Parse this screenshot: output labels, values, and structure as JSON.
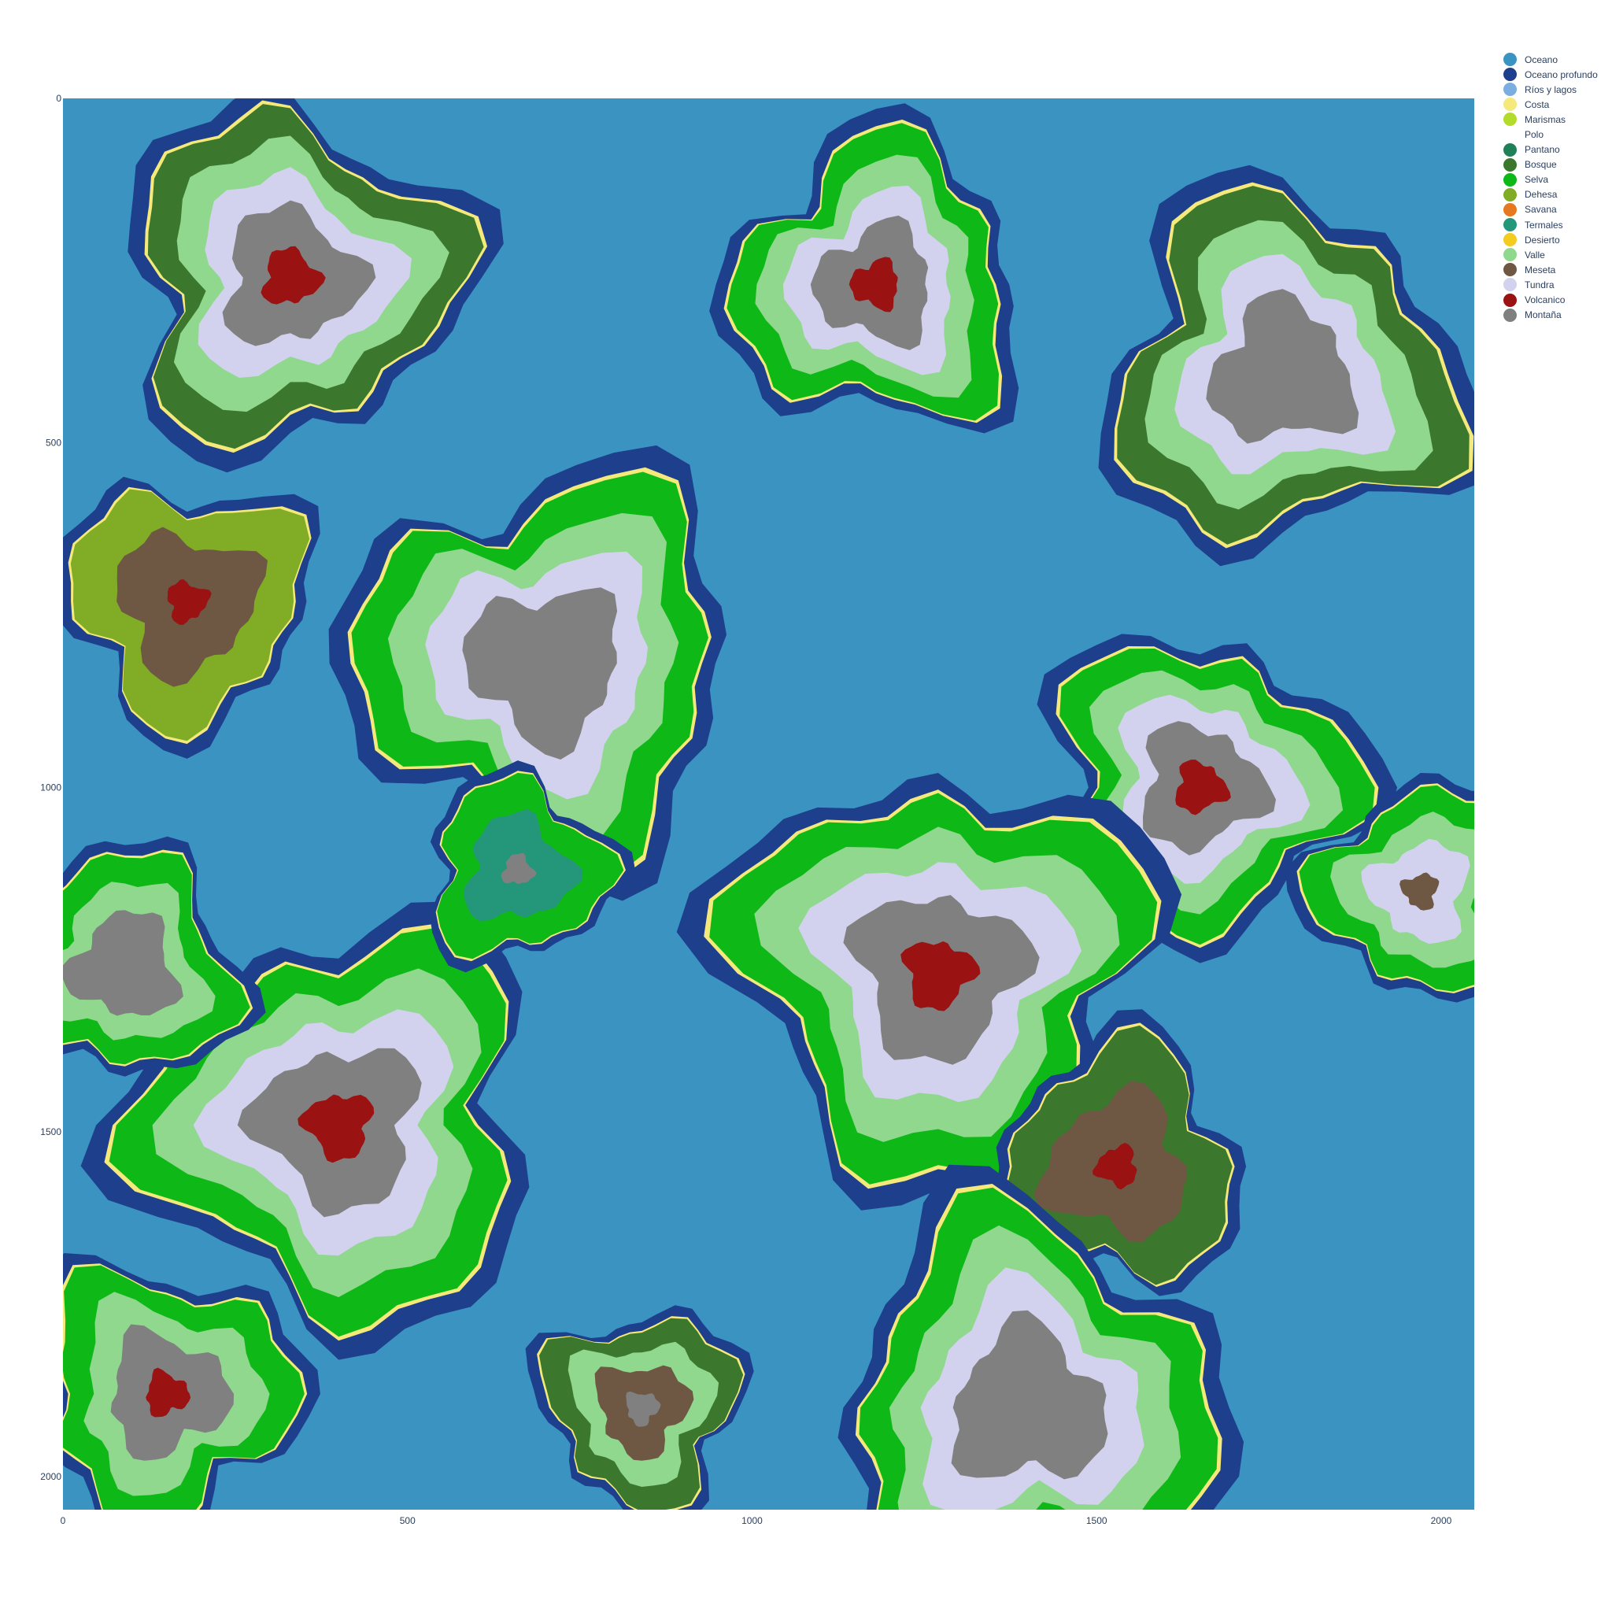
{
  "chart_data": {
    "type": "heatmap",
    "title": "",
    "xlabel": "",
    "ylabel": "",
    "xlim": [
      0,
      2048
    ],
    "ylim": [
      0,
      2048
    ],
    "y_axis_direction": "reversed",
    "x_ticks": [
      "0",
      "500",
      "1000",
      "1500",
      "2000"
    ],
    "y_ticks": [
      "0",
      "500",
      "1000",
      "1500",
      "2000"
    ],
    "grid": false,
    "legend_position": "top-right",
    "categories": [
      {
        "name": "Oceano",
        "color": "#3b93c2"
      },
      {
        "name": "Oceano profundo",
        "color": "#1d3f8c"
      },
      {
        "name": "Ríos y lagos",
        "color": "#7aaee0"
      },
      {
        "name": "Costa",
        "color": "#f4e97a"
      },
      {
        "name": "Marismas",
        "color": "#b2db2c"
      },
      {
        "name": "Polo",
        "color": "#ffffff"
      },
      {
        "name": "Pantano",
        "color": "#1f8158"
      },
      {
        "name": "Bosque",
        "color": "#3b772c"
      },
      {
        "name": "Selva",
        "color": "#0eb816"
      },
      {
        "name": "Dehesa",
        "color": "#80ad25"
      },
      {
        "name": "Savana",
        "color": "#e6781f"
      },
      {
        "name": "Termales",
        "color": "#24977a"
      },
      {
        "name": "Desierto",
        "color": "#f4cb1f"
      },
      {
        "name": "Valle",
        "color": "#8fd88e"
      },
      {
        "name": "Meseta",
        "color": "#6f5843"
      },
      {
        "name": "Tundra",
        "color": "#d2d2ee"
      },
      {
        "name": "Volcanico",
        "color": "#9b1212"
      },
      {
        "name": "Montaña",
        "color": "#808080"
      }
    ],
    "landmasses": [
      {
        "cx": 330,
        "cy": 260,
        "r": 220,
        "rings": [
          "Bosque",
          "Valle",
          "Tundra",
          "Montaña"
        ],
        "core": "Volcanico"
      },
      {
        "cx": 180,
        "cy": 730,
        "r": 160,
        "rings": [
          "Dehesa",
          "Meseta"
        ],
        "core": "Volcanico"
      },
      {
        "cx": 700,
        "cy": 820,
        "r": 250,
        "rings": [
          "Selva",
          "Valle",
          "Tundra",
          "Montaña"
        ],
        "core": "Montaña"
      },
      {
        "cx": 1180,
        "cy": 270,
        "r": 190,
        "rings": [
          "Selva",
          "Valle",
          "Tundra",
          "Montaña"
        ],
        "core": "Volcanico"
      },
      {
        "cx": 1770,
        "cy": 400,
        "r": 230,
        "rings": [
          "Bosque",
          "Valle",
          "Tundra",
          "Montaña"
        ],
        "core": "Montaña"
      },
      {
        "cx": 1650,
        "cy": 1000,
        "r": 200,
        "rings": [
          "Selva",
          "Valle",
          "Tundra",
          "Montaña"
        ],
        "core": "Volcanico"
      },
      {
        "cx": 1270,
        "cy": 1270,
        "r": 270,
        "rings": [
          "Selva",
          "Valle",
          "Tundra",
          "Montaña"
        ],
        "core": "Volcanico"
      },
      {
        "cx": 400,
        "cy": 1490,
        "r": 260,
        "rings": [
          "Selva",
          "Valle",
          "Tundra",
          "Montaña"
        ],
        "core": "Volcanico"
      },
      {
        "cx": 1530,
        "cy": 1550,
        "r": 160,
        "rings": [
          "Bosque",
          "Meseta"
        ],
        "core": "Volcanico"
      },
      {
        "cx": 1400,
        "cy": 1900,
        "r": 250,
        "rings": [
          "Selva",
          "Valle",
          "Tundra",
          "Montaña"
        ],
        "core": "Montaña"
      },
      {
        "cx": 150,
        "cy": 1880,
        "r": 170,
        "rings": [
          "Selva",
          "Valle",
          "Montaña"
        ],
        "core": "Volcanico"
      },
      {
        "cx": 840,
        "cy": 1900,
        "r": 130,
        "rings": [
          "Bosque",
          "Valle",
          "Meseta"
        ],
        "core": "Montaña"
      },
      {
        "cx": 1970,
        "cy": 1150,
        "r": 140,
        "rings": [
          "Selva",
          "Valle",
          "Tundra"
        ],
        "core": "Meseta"
      },
      {
        "cx": 90,
        "cy": 1260,
        "r": 150,
        "rings": [
          "Selva",
          "Valle",
          "Montaña"
        ],
        "core": "Montaña"
      },
      {
        "cx": 660,
        "cy": 1120,
        "r": 120,
        "rings": [
          "Selva",
          "Termales"
        ],
        "core": "Montaña"
      }
    ]
  }
}
